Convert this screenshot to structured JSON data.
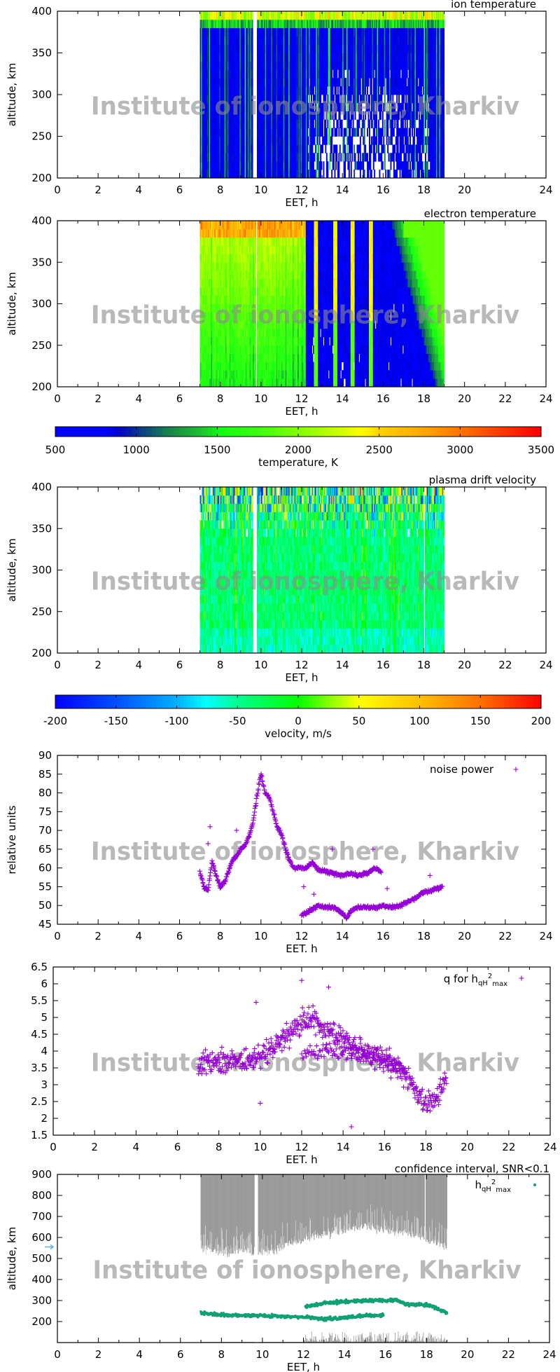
{
  "watermark": "Institute of ionosphere, Kharkiv",
  "colors": {
    "scatter": "#9400d3",
    "hmax": "#12a075",
    "confidence": "#9a9a9a",
    "marker": "#56b4e9"
  },
  "colorbars": [
    {
      "label": "temperature, K",
      "min": 500,
      "max": 3500,
      "ticks": [
        "500",
        "1000",
        "1500",
        "2000",
        "2500",
        "3000",
        "3500"
      ]
    },
    {
      "label": "velocity, m/s",
      "min": -200,
      "max": 200,
      "ticks": [
        "-200",
        "-150",
        "-100",
        "-50",
        "0",
        "50",
        "100",
        "150",
        "200"
      ]
    }
  ],
  "chart_data": [
    {
      "type": "heatmap",
      "title": "ion temperature",
      "xlabel": "EET, h",
      "ylabel": "altitude, km",
      "xlim": [
        0,
        24
      ],
      "ylim": [
        200,
        400
      ],
      "xticks": [
        "0",
        "2",
        "4",
        "6",
        "8",
        "10",
        "12",
        "14",
        "16",
        "18",
        "20",
        "24"
      ],
      "yticks": [
        "200",
        "250",
        "300",
        "350",
        "400"
      ],
      "data_time_span": [
        7,
        19
      ],
      "colorbar": 0
    },
    {
      "type": "heatmap",
      "title": "electron temperature",
      "xlabel": "EET, h",
      "ylabel": "altitude, km",
      "xlim": [
        0,
        24
      ],
      "ylim": [
        200,
        400
      ],
      "xticks": [
        "0",
        "2",
        "4",
        "6",
        "8",
        "10",
        "12",
        "14",
        "16",
        "18",
        "20",
        "22",
        "24"
      ],
      "yticks": [
        "200",
        "250",
        "300",
        "350",
        "400"
      ],
      "data_time_span": [
        7,
        19
      ],
      "colorbar": 0
    },
    {
      "type": "heatmap",
      "title": "plasma drift velocity",
      "xlabel": "EET, h",
      "ylabel": "altitude, km",
      "xlim": [
        0,
        24
      ],
      "ylim": [
        200,
        400
      ],
      "xticks": [
        "0",
        "2",
        "4",
        "6",
        "8",
        "10",
        "12",
        "14",
        "16",
        "18",
        "20",
        "22",
        "24"
      ],
      "yticks": [
        "200",
        "250",
        "300",
        "350",
        "400"
      ],
      "data_time_span": [
        7,
        19
      ],
      "colorbar": 1
    },
    {
      "type": "scatter",
      "legend": "noise power",
      "xlabel": "EET. h",
      "ylabel": "relative units",
      "xlim": [
        0,
        24
      ],
      "ylim": [
        45,
        90
      ],
      "xticks": [
        "0",
        "2",
        "4",
        "6",
        "8",
        "10",
        "12",
        "14",
        "16",
        "18",
        "20",
        "22",
        "24"
      ],
      "yticks": [
        "45",
        "50",
        "55",
        "60",
        "65",
        "70",
        "75",
        "80",
        "85",
        "90"
      ],
      "series": [
        {
          "values": [
            [
              7.0,
              59
            ],
            [
              7.2,
              55
            ],
            [
              7.4,
              54
            ],
            [
              7.6,
              62
            ],
            [
              7.8,
              58
            ],
            [
              8.0,
              55
            ],
            [
              8.2,
              56
            ],
            [
              8.4,
              59
            ],
            [
              8.6,
              62
            ],
            [
              8.8,
              63
            ],
            [
              9.0,
              65
            ],
            [
              9.2,
              66
            ],
            [
              9.4,
              68
            ],
            [
              9.6,
              72
            ],
            [
              9.8,
              79
            ],
            [
              10.0,
              85
            ],
            [
              10.2,
              80
            ],
            [
              10.4,
              79
            ],
            [
              10.6,
              75
            ],
            [
              10.8,
              71
            ],
            [
              11.0,
              69
            ],
            [
              11.2,
              65
            ],
            [
              11.4,
              62
            ],
            [
              11.6,
              60
            ],
            [
              11.8,
              60
            ],
            [
              12.0,
              60
            ],
            [
              12.2,
              60
            ],
            [
              12.5,
              61.5
            ],
            [
              12.8,
              59.5
            ],
            [
              13.2,
              59
            ],
            [
              13.6,
              58.5
            ],
            [
              14.0,
              58
            ],
            [
              14.4,
              58.5
            ],
            [
              14.8,
              58
            ],
            [
              15.2,
              58.5
            ],
            [
              15.6,
              60
            ],
            [
              15.9,
              59
            ]
          ]
        },
        {
          "values": [
            [
              12.0,
              47.5
            ],
            [
              12.4,
              48.5
            ],
            [
              12.8,
              50
            ],
            [
              13.2,
              49.5
            ],
            [
              13.6,
              49.5
            ],
            [
              14.0,
              48
            ],
            [
              14.2,
              46.5
            ],
            [
              14.4,
              48.5
            ],
            [
              14.8,
              49.5
            ],
            [
              15.2,
              49.5
            ],
            [
              15.6,
              49.5
            ],
            [
              16.0,
              50
            ],
            [
              16.4,
              49.5
            ],
            [
              16.8,
              50
            ],
            [
              17.2,
              51
            ],
            [
              17.6,
              52
            ],
            [
              18.0,
              53.5
            ],
            [
              18.4,
              54
            ],
            [
              18.9,
              55
            ]
          ]
        },
        {
          "values": [
            [
              7.5,
              71
            ],
            [
              7.4,
              66.5
            ],
            [
              8.8,
              70
            ],
            [
              13.5,
              65
            ],
            [
              15.5,
              65
            ],
            [
              16.2,
              54.5
            ],
            [
              18.3,
              58
            ],
            [
              12.1,
              55
            ],
            [
              12.6,
              53
            ]
          ]
        }
      ]
    },
    {
      "type": "scatter",
      "legend_main": "q for h",
      "legend_sub": "qH",
      "legend_sup": "2",
      "legend_sub2": "max",
      "xlabel": "EET. h",
      "ylabel": "",
      "xlim": [
        0,
        24
      ],
      "ylim": [
        1.5,
        6.5
      ],
      "xticks": [
        "0",
        "2",
        "4",
        "6",
        "8",
        "10",
        "12",
        "14",
        "16",
        "18",
        "20",
        "22",
        "24"
      ],
      "yticks": [
        "1.5",
        "2",
        "2.5",
        "3",
        "3.5",
        "4",
        "4.5",
        "5",
        "5.5",
        "6",
        "6.5"
      ],
      "series": [
        {
          "values": [
            [
              7.0,
              3.6
            ],
            [
              8.0,
              3.75
            ],
            [
              9.0,
              3.7
            ],
            [
              10.0,
              3.8
            ],
            [
              11.0,
              4.3
            ],
            [
              12.0,
              4.8
            ],
            [
              12.5,
              5.0
            ],
            [
              13.0,
              4.6
            ],
            [
              14.0,
              4.4
            ],
            [
              15.0,
              4.0
            ],
            [
              16.0,
              3.7
            ],
            [
              17.0,
              3.3
            ],
            [
              17.5,
              2.8
            ],
            [
              18.0,
              2.4
            ],
            [
              18.5,
              2.7
            ],
            [
              19.0,
              3.2
            ]
          ]
        },
        {
          "values": [
            [
              12.0,
              3.9
            ],
            [
              13.0,
              4.0
            ],
            [
              14.0,
              3.9
            ],
            [
              15.0,
              3.9
            ],
            [
              16.0,
              3.7
            ],
            [
              17.0,
              3.5
            ]
          ]
        },
        {
          "values": [
            [
              10.0,
              2.45
            ],
            [
              14.4,
              1.75
            ],
            [
              9.8,
              5.45
            ],
            [
              12.0,
              6.1
            ],
            [
              13.3,
              5.9
            ]
          ]
        }
      ]
    },
    {
      "type": "scatter",
      "legend_ci": "confidence interval, SNR<0.1",
      "legend_main": "h",
      "legend_sub": "qH",
      "legend_sup": "2",
      "legend_sub2": "max",
      "xlabel": "EET, h",
      "ylabel": "altitude, km",
      "xlim": [
        0,
        24
      ],
      "ylim": [
        100,
        900
      ],
      "xticks": [
        "0",
        "2",
        "4",
        "6",
        "8",
        "10",
        "12",
        "14",
        "16",
        "18",
        "20",
        "22",
        "24"
      ],
      "yticks": [
        "200",
        "300",
        "400",
        "500",
        "600",
        "700",
        "800",
        "900"
      ],
      "marker_altitude": 555,
      "confidence_interval": {
        "upper": 900,
        "lower": [
          [
            7,
            545
          ],
          [
            8,
            535
          ],
          [
            9,
            540
          ],
          [
            9.6,
            530
          ],
          [
            10,
            530
          ],
          [
            11,
            560
          ],
          [
            12,
            590
          ],
          [
            13,
            620
          ],
          [
            14,
            640
          ],
          [
            15,
            650
          ],
          [
            16,
            640
          ],
          [
            17,
            620
          ],
          [
            18,
            590
          ],
          [
            19,
            560
          ]
        ]
      },
      "series": [
        {
          "values": [
            [
              7.0,
              242
            ],
            [
              8.0,
              232
            ],
            [
              9.0,
              228
            ],
            [
              10.0,
              228
            ],
            [
              11.0,
              225
            ],
            [
              12.0,
              222
            ],
            [
              13.0,
              212
            ],
            [
              14.0,
              218
            ],
            [
              15.0,
              228
            ],
            [
              15.9,
              230
            ]
          ]
        },
        {
          "values": [
            [
              12.1,
              270
            ],
            [
              13.0,
              288
            ],
            [
              14.0,
              295
            ],
            [
              15.0,
              300
            ],
            [
              16.0,
              300
            ],
            [
              16.5,
              302
            ],
            [
              17.0,
              282
            ],
            [
              18.0,
              280
            ],
            [
              18.5,
              262
            ],
            [
              19.0,
              240
            ]
          ]
        }
      ]
    }
  ]
}
